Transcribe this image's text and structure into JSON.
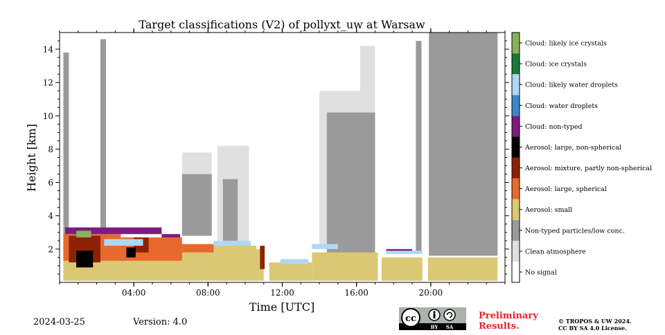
{
  "chart_data": {
    "type": "heatmap",
    "title": "Target classifications (V2) of pollyxt_uw at Warsaw",
    "xlabel": "Time [UTC]",
    "ylabel": "Height [km]",
    "xlim_hours": [
      0,
      24
    ],
    "ylim_km": [
      0,
      15
    ],
    "x_ticks": [
      "04:00",
      "08:00",
      "12:00",
      "16:00",
      "20:00"
    ],
    "x_tick_hours": [
      4,
      8,
      12,
      16,
      20
    ],
    "y_ticks": [
      "2",
      "4",
      "6",
      "8",
      "10",
      "12",
      "14"
    ],
    "y_tick_values": [
      2,
      4,
      6,
      8,
      10,
      12,
      14
    ],
    "legend_placement": "right colorbar",
    "classes": [
      {
        "label": "No signal",
        "color": "#ffffff"
      },
      {
        "label": "Clean atmosphere",
        "color": "#e0e0e0"
      },
      {
        "label": "Non-typed particles/low conc.",
        "color": "#9a9a9a"
      },
      {
        "label": "Aerosol: small",
        "color": "#dcc872"
      },
      {
        "label": "Aerosol: large, spherical",
        "color": "#e8692d"
      },
      {
        "label": "Aerosol: mixture, partly non-spherical",
        "color": "#8c2204"
      },
      {
        "label": "Aerosol: large, non-spherical",
        "color": "#000000"
      },
      {
        "label": "Cloud: non-typed",
        "color": "#7d1c80"
      },
      {
        "label": "Cloud: water droplets",
        "color": "#3a87c8"
      },
      {
        "label": "Cloud: likely water droplets",
        "color": "#b0d8f5"
      },
      {
        "label": "Cloud: ice crystals",
        "color": "#197c38"
      },
      {
        "label": "Cloud: likely ice crystals",
        "color": "#88b15a"
      }
    ],
    "regions": [
      {
        "class": 2,
        "t0": 0.2,
        "t1": 0.5,
        "h0": 2.5,
        "h1": 13.8
      },
      {
        "class": 2,
        "t0": 2.2,
        "t1": 2.5,
        "h0": 2.5,
        "h1": 14.6
      },
      {
        "class": 1,
        "t0": 6.6,
        "t1": 8.2,
        "h0": 2.8,
        "h1": 7.8
      },
      {
        "class": 2,
        "t0": 6.6,
        "t1": 8.2,
        "h0": 2.8,
        "h1": 6.5
      },
      {
        "class": 1,
        "t0": 8.5,
        "t1": 10.2,
        "h0": 2.5,
        "h1": 8.2
      },
      {
        "class": 2,
        "t0": 8.8,
        "t1": 9.6,
        "h0": 2.5,
        "h1": 6.2
      },
      {
        "class": 1,
        "t0": 14.0,
        "t1": 17.0,
        "h0": 2.3,
        "h1": 11.5
      },
      {
        "class": 2,
        "t0": 14.4,
        "t1": 17.0,
        "h0": 1.0,
        "h1": 10.2
      },
      {
        "class": 1,
        "t0": 16.2,
        "t1": 17.0,
        "h0": 10.2,
        "h1": 14.2
      },
      {
        "class": 2,
        "t0": 19.2,
        "t1": 19.5,
        "h0": 1.8,
        "h1": 14.5
      },
      {
        "class": 2,
        "t0": 19.9,
        "t1": 23.6,
        "h0": 1.6,
        "h1": 15.0
      },
      {
        "class": 3,
        "t0": 0.0,
        "t1": 10.6,
        "h0": 0.1,
        "h1": 2.2
      },
      {
        "class": 3,
        "t0": 10.6,
        "t1": 11.0,
        "h0": 0.1,
        "h1": 2.0
      },
      {
        "class": 3,
        "t0": 11.3,
        "t1": 13.6,
        "h0": 0.1,
        "h1": 1.2
      },
      {
        "class": 3,
        "t0": 13.6,
        "t1": 17.2,
        "h0": 0.1,
        "h1": 1.8
      },
      {
        "class": 3,
        "t0": 17.3,
        "t1": 23.6,
        "h0": 0.1,
        "h1": 1.5
      },
      {
        "class": 4,
        "t0": 0.0,
        "t1": 3.3,
        "h0": 1.3,
        "h1": 2.9
      },
      {
        "class": 4,
        "t0": 3.3,
        "t1": 6.6,
        "h0": 1.3,
        "h1": 2.7
      },
      {
        "class": 4,
        "t0": 6.6,
        "t1": 8.3,
        "h0": 1.8,
        "h1": 2.3
      },
      {
        "class": 5,
        "t0": 0.5,
        "t1": 2.2,
        "h0": 1.2,
        "h1": 2.8
      },
      {
        "class": 5,
        "t0": 4.0,
        "t1": 4.8,
        "h0": 1.8,
        "h1": 2.7
      },
      {
        "class": 5,
        "t0": 10.8,
        "t1": 11.2,
        "h0": 0.8,
        "h1": 2.2
      },
      {
        "class": 6,
        "t0": 0.9,
        "t1": 1.8,
        "h0": 0.9,
        "h1": 1.9
      },
      {
        "class": 6,
        "t0": 3.6,
        "t1": 4.1,
        "h0": 1.5,
        "h1": 2.1
      },
      {
        "class": 7,
        "t0": 0.3,
        "t1": 5.5,
        "h0": 2.9,
        "h1": 3.3
      },
      {
        "class": 7,
        "t0": 5.5,
        "t1": 6.5,
        "h0": 2.7,
        "h1": 2.9
      },
      {
        "class": 7,
        "t0": 17.6,
        "t1": 19.0,
        "h0": 1.8,
        "h1": 2.0
      },
      {
        "class": 9,
        "t0": 2.4,
        "t1": 4.5,
        "h0": 2.2,
        "h1": 2.6
      },
      {
        "class": 9,
        "t0": 8.3,
        "t1": 10.3,
        "h0": 2.2,
        "h1": 2.5
      },
      {
        "class": 9,
        "t0": 11.9,
        "t1": 13.4,
        "h0": 1.1,
        "h1": 1.4
      },
      {
        "class": 9,
        "t0": 13.6,
        "t1": 15.0,
        "h0": 2.0,
        "h1": 2.3
      },
      {
        "class": 9,
        "t0": 17.6,
        "t1": 19.8,
        "h0": 1.7,
        "h1": 1.9
      },
      {
        "class": 11,
        "t0": 0.9,
        "t1": 1.7,
        "h0": 2.7,
        "h1": 3.1
      }
    ],
    "gaps": [
      {
        "t0": 0.0,
        "t1": 0.2
      },
      {
        "t0": 11.05,
        "t1": 11.25
      },
      {
        "t0": 17.15,
        "t1": 17.35
      },
      {
        "t0": 19.55,
        "t1": 19.85
      }
    ]
  },
  "footer": {
    "date": "2024-03-25",
    "version": "Version: 4.0",
    "preliminary_line1": "Preliminary",
    "preliminary_line2": "Results.",
    "copyright_line1": "© TROPOS & UW 2024.",
    "copyright_line2": "CC BY SA 4.0 License.",
    "cc_badge_left": "cc",
    "cc_by": "BY",
    "cc_sa": "SA"
  },
  "icons": {
    "cc_badge": "creative-commons-by-sa-icon"
  }
}
